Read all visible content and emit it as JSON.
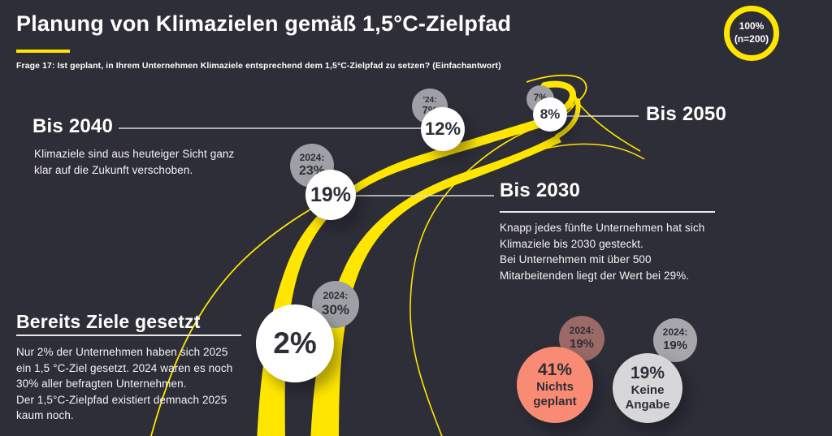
{
  "header": {
    "title": "Planung von Klimazielen gemäß 1,5°C-Zielpfad",
    "question": "Frage 17: Ist geplant, in Ihrem Unternehmen Klimaziele entsprechend dem 1,5°C-Zielpfad zu setzen? (Einfachantwort)",
    "badge": {
      "line1": "100%",
      "line2": "(n=200)"
    }
  },
  "sections": {
    "bereits": {
      "heading": "Bereits Ziele gesetzt",
      "body": [
        "Nur 2% der Unternehmen haben sich 2025",
        "ein 1,5 °C-Ziel gesetzt. 2024 waren es noch",
        "30% aller befragten Unternehmen.",
        "Der 1,5°C-Zielpfad existiert demnach 2025",
        "kaum noch."
      ]
    },
    "bis2030": {
      "heading": "Bis 2030",
      "body": [
        "Knapp jedes fünfte Unternehmen hat sich",
        "Klimaziele bis 2030 gesteckt.",
        "Bei Unternehmen mit über 500",
        "Mitarbeitenden liegt der Wert bei 29%."
      ]
    },
    "bis2040": {
      "heading": "Bis 2040",
      "body": [
        "Klimaziele sind aus heuteiger Sicht ganz",
        "klar auf die Zukunft verschoben."
      ]
    },
    "bis2050": {
      "heading": "Bis 2050"
    }
  },
  "nodes": {
    "bereits": {
      "value": "2%",
      "prev": [
        "2024:",
        "30%"
      ]
    },
    "bis2030": {
      "value": "19%",
      "prev": [
        "2024:",
        "23%"
      ]
    },
    "bis2040": {
      "value": "12%",
      "prev": [
        "'24:",
        "7%"
      ]
    },
    "bis2050": {
      "value": "8%",
      "prev": [
        "7%"
      ]
    },
    "nichts": {
      "value": "41%",
      "label": [
        "Nichts",
        "geplant"
      ],
      "prev": [
        "2024:",
        "19%"
      ]
    },
    "keine": {
      "value": "19%",
      "label": [
        "Keine",
        "Angabe"
      ],
      "prev": [
        "2024:",
        "19%"
      ]
    }
  },
  "colors": {
    "background": "#2e2e38",
    "accent_yellow": "#ffe600",
    "white_node": "#ffffff",
    "grey_prev_node": "#9fa0a5",
    "salmon_node": "#f98a73",
    "salmon_prev_node": "#9b6a67",
    "light_grey_node": "#d7d7d9",
    "grey_prev_node_right": "#a6a6ab",
    "text_dark": "#2e2e38"
  },
  "chart_data": {
    "type": "diagram",
    "title": "Planung von Klimazielen gemäß 1,5°C-Zielpfad",
    "subtitle": "Frage 17: Ist geplant, in Ihrem Unternehmen Klimaziele entsprechend dem 1,5°C-Zielpfad zu setzen? (Einfachantwort)",
    "sample": "100% (n=200)",
    "unit": "%",
    "categories": [
      "Bereits Ziele gesetzt",
      "Bis 2030",
      "Bis 2040",
      "Bis 2050",
      "Nichts geplant",
      "Keine Angabe"
    ],
    "series": [
      {
        "name": "2025",
        "values": [
          2,
          19,
          12,
          8,
          41,
          19
        ]
      },
      {
        "name": "2024",
        "values": [
          30,
          23,
          7,
          7,
          19,
          19
        ]
      }
    ],
    "annotations": [
      "Nur 2% der Unternehmen haben sich 2025 ein 1,5 °C-Ziel gesetzt. 2024 waren es noch 30% aller befragten Unternehmen. Der 1,5°C-Zielpfad existiert demnach 2025 kaum noch.",
      "Knapp jedes fünfte Unternehmen hat sich Klimaziele bis 2030 gesteckt. Bei Unternehmen mit über 500 Mitarbeitenden liegt der Wert bei 29%.",
      "Klimaziele sind aus heuteiger Sicht ganz klar auf die Zukunft verschoben."
    ],
    "layout_hint": "winding yellow road from bottom to top-right; survey result circles placed along the road"
  }
}
